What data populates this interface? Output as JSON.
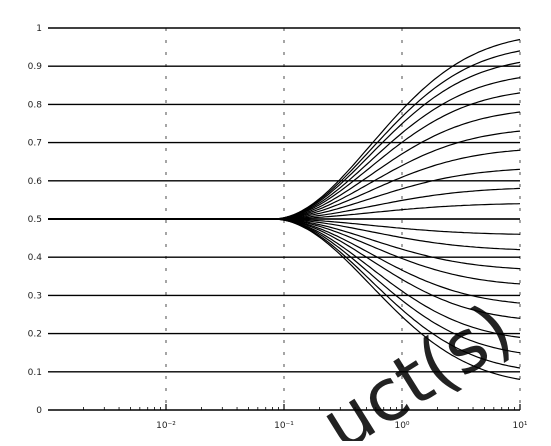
{
  "chart_data": {
    "type": "line",
    "title": "",
    "xlabel": "",
    "ylabel": "",
    "x_scale": "log",
    "xlim": [
      0.001,
      10
    ],
    "ylim": [
      0,
      1
    ],
    "x_ticks": [
      0.01,
      0.1,
      1,
      10
    ],
    "x_tick_labels": [
      "10⁻²",
      "10⁻¹",
      "10⁰",
      "10¹"
    ],
    "y_ticks": [
      0,
      0.1,
      0.2,
      0.3,
      0.4,
      0.5,
      0.6,
      0.7,
      0.8,
      0.9,
      1
    ],
    "y_tick_labels": [
      "0",
      "0.1",
      "0.2",
      "0.3",
      "0.4",
      "0.5",
      "0.6",
      "0.7",
      "0.8",
      "0.9",
      "1"
    ],
    "grid": "horizontal",
    "legend": "none",
    "line_color": "#000000",
    "series_note_shape": "fan of curves starting at y=0.5 for small x and diverging for x > 0.1",
    "branch_start_x": 0.08,
    "series": [
      {
        "final_value": 0.97
      },
      {
        "final_value": 0.94
      },
      {
        "final_value": 0.91
      },
      {
        "final_value": 0.87
      },
      {
        "final_value": 0.83
      },
      {
        "final_value": 0.78
      },
      {
        "final_value": 0.73
      },
      {
        "final_value": 0.68
      },
      {
        "final_value": 0.63
      },
      {
        "final_value": 0.58
      },
      {
        "final_value": 0.54
      },
      {
        "final_value": 0.5
      },
      {
        "final_value": 0.46
      },
      {
        "final_value": 0.42
      },
      {
        "final_value": 0.37
      },
      {
        "final_value": 0.33
      },
      {
        "final_value": 0.28
      },
      {
        "final_value": 0.24
      },
      {
        "final_value": 0.19
      },
      {
        "final_value": 0.15
      },
      {
        "final_value": 0.11
      },
      {
        "final_value": 0.08
      }
    ]
  },
  "watermark": {
    "text": "uct(s)",
    "color": "#d9d9d9"
  }
}
